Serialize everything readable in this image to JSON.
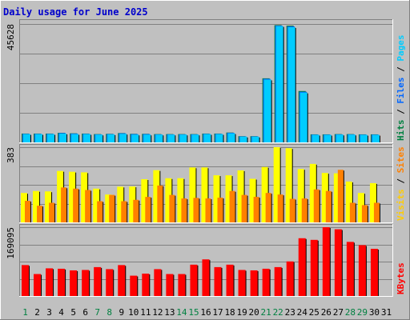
{
  "title": "Daily usage for June 2025",
  "colors": {
    "background": "#c0c0c0",
    "frame_light": "#ffffff",
    "frame_dark": "#808080",
    "grid": "#808080",
    "pages": "#00ccff",
    "files": "#0066ff",
    "visits": "#ffff00",
    "sites": "#ff8000",
    "kbytes": "#ff0000",
    "title": "#0000cc",
    "weekday": "#000000",
    "weekend": "#008040"
  },
  "chart_data": [
    {
      "type": "bar",
      "name": "hits-panel",
      "ymax_label": "45628",
      "ylim": [
        0,
        45628
      ],
      "categories": [
        "1",
        "2",
        "3",
        "4",
        "5",
        "6",
        "7",
        "8",
        "9",
        "10",
        "11",
        "12",
        "13",
        "14",
        "15",
        "16",
        "17",
        "18",
        "19",
        "20",
        "21",
        "22",
        "23",
        "24",
        "25",
        "26",
        "27",
        "28",
        "29",
        "30",
        "31"
      ],
      "weekend_days": [
        1,
        7,
        8,
        14,
        15,
        21,
        22,
        28,
        29
      ],
      "side_legend": [
        {
          "text": "Hits",
          "color": "#008040"
        },
        {
          "text": " / ",
          "color": "#000000"
        },
        {
          "text": "Files",
          "color": "#0066ff"
        },
        {
          "text": " / ",
          "color": "#000000"
        },
        {
          "text": "Pages",
          "color": "#00ccff"
        }
      ],
      "series": [
        {
          "key": "hits",
          "color": "#008040",
          "values": [
            3400,
            3400,
            3400,
            3700,
            3500,
            3400,
            3200,
            3300,
            3600,
            3300,
            3300,
            3200,
            3200,
            3200,
            3200,
            3400,
            3400,
            3800,
            2400,
            2400,
            24700,
            45200,
            45000,
            19800,
            3100,
            3100,
            3200,
            3200,
            3100,
            3100,
            0
          ]
        },
        {
          "key": "files",
          "color": "#0066ff",
          "values": [
            3300,
            3300,
            3300,
            3600,
            3400,
            3300,
            3100,
            3200,
            3500,
            3200,
            3200,
            3100,
            3100,
            3100,
            3100,
            3300,
            3300,
            3700,
            2300,
            2300,
            24500,
            45000,
            44700,
            19500,
            3000,
            3000,
            3100,
            3100,
            3000,
            3000,
            0
          ]
        },
        {
          "key": "pages",
          "color": "#00ccff",
          "values": [
            3200,
            3200,
            3200,
            3400,
            3200,
            3200,
            3000,
            3100,
            3300,
            3000,
            3000,
            3000,
            3000,
            3000,
            3000,
            3200,
            3200,
            3500,
            2200,
            2200,
            24200,
            44800,
            44400,
            19200,
            2900,
            2900,
            3000,
            3000,
            2900,
            2900,
            0
          ]
        }
      ]
    },
    {
      "type": "bar",
      "name": "visits-panel",
      "ymax_label": "383",
      "ylim": [
        0,
        383
      ],
      "categories": [
        "1",
        "2",
        "3",
        "4",
        "5",
        "6",
        "7",
        "8",
        "9",
        "10",
        "11",
        "12",
        "13",
        "14",
        "15",
        "16",
        "17",
        "18",
        "19",
        "20",
        "21",
        "22",
        "23",
        "24",
        "25",
        "26",
        "27",
        "28",
        "29",
        "30",
        "31"
      ],
      "side_legend": [
        {
          "text": "Visits",
          "color": "#ffcc00"
        },
        {
          "text": " / ",
          "color": "#000000"
        },
        {
          "text": "Sites",
          "color": "#ff8000"
        }
      ],
      "series": [
        {
          "key": "visits",
          "color": "#ffff00",
          "values": [
            150,
            160,
            158,
            262,
            258,
            255,
            172,
            142,
            182,
            183,
            220,
            266,
            225,
            225,
            280,
            280,
            240,
            240,
            265,
            222,
            282,
            383,
            378,
            272,
            298,
            252,
            250,
            208,
            150,
            200,
            0
          ]
        },
        {
          "key": "sites",
          "color": "#ff8000",
          "values": [
            110,
            85,
            100,
            178,
            172,
            165,
            108,
            140,
            108,
            115,
            130,
            188,
            140,
            122,
            125,
            122,
            126,
            160,
            140,
            130,
            150,
            142,
            120,
            122,
            168,
            160,
            268,
            100,
            88,
            100,
            0
          ]
        }
      ]
    },
    {
      "type": "bar",
      "name": "kbytes-panel",
      "ymax_label": "169095",
      "ylim": [
        0,
        169095
      ],
      "categories": [
        "1",
        "2",
        "3",
        "4",
        "5",
        "6",
        "7",
        "8",
        "9",
        "10",
        "11",
        "12",
        "13",
        "14",
        "15",
        "16",
        "17",
        "18",
        "19",
        "20",
        "21",
        "22",
        "23",
        "24",
        "25",
        "26",
        "27",
        "28",
        "29",
        "30",
        "31"
      ],
      "side_legend": [
        {
          "text": "KBytes",
          "color": "#ff0000"
        }
      ],
      "series": [
        {
          "key": "kbytes",
          "color": "#ff0000",
          "values": [
            76000,
            54000,
            68000,
            67000,
            63000,
            64000,
            71000,
            66000,
            76000,
            50000,
            55000,
            66000,
            54000,
            54000,
            77000,
            90000,
            71000,
            77000,
            64000,
            63000,
            67000,
            71000,
            85000,
            142000,
            138000,
            169095,
            164000,
            133000,
            125000,
            116000,
            0
          ]
        }
      ]
    }
  ]
}
